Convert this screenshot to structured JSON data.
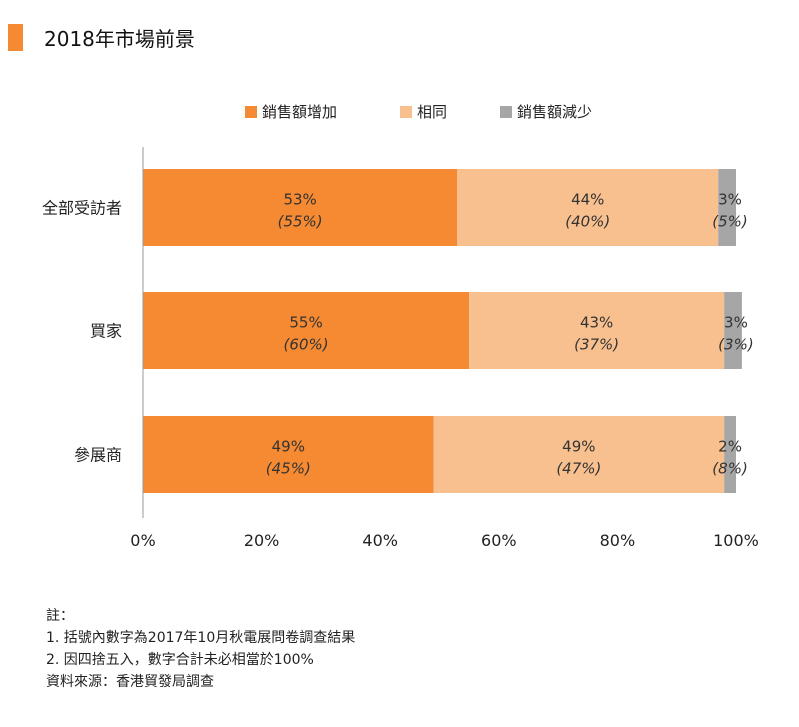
{
  "page_title": "2018年市場前景",
  "notes": {
    "heading": "註：",
    "line1": "1. 括號內數字為2017年10月秋電展問卷調查結果",
    "line2": "2. 因四捨五入，數字合計未必相當於100%",
    "source": "資料來源：香港貿發局調查"
  },
  "colors": {
    "accent": "#f58a32",
    "increase": "#f58a32",
    "same": "#f9c08f",
    "decrease": "#a6a6a6"
  },
  "chart_data": {
    "type": "bar",
    "orientation": "horizontal",
    "stacked": true,
    "title": "",
    "xlabel": "",
    "ylabel": "",
    "xlim": [
      0,
      100
    ],
    "x_ticks": [
      "0%",
      "20%",
      "40%",
      "60%",
      "80%",
      "100%"
    ],
    "legend_position": "top",
    "grid": false,
    "categories": [
      "全部受訪者",
      "買家",
      "參展商"
    ],
    "series": [
      {
        "name": "銷售額增加",
        "color": "#f58a32",
        "values": [
          53,
          55,
          49
        ],
        "labels": [
          "53%",
          "55%",
          "49%"
        ],
        "prev_labels": [
          "(55%)",
          "(60%)",
          "(45%)"
        ]
      },
      {
        "name": "相同",
        "color": "#f9c08f",
        "values": [
          44,
          43,
          49
        ],
        "labels": [
          "44%",
          "43%",
          "49%"
        ],
        "prev_labels": [
          "(40%)",
          "(37%)",
          "(47%)"
        ]
      },
      {
        "name": "銷售額減少",
        "color": "#a6a6a6",
        "values": [
          3,
          3,
          2
        ],
        "labels": [
          "3%",
          "3%",
          "2%"
        ],
        "prev_labels": [
          "(5%)",
          "(3%)",
          "(8%)"
        ]
      }
    ]
  }
}
